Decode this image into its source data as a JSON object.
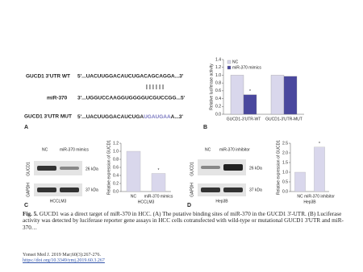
{
  "panel_a": {
    "label": "A",
    "rows": [
      {
        "name": "GUCD1 3'UTR WT",
        "seq": "5'...UACUUGGACAUCUGACAGCAGGA...3'"
      },
      {
        "name": "miR-370",
        "seq": "3'...UGGUCCAAGGUGGGGUCGUCCGG...5'"
      },
      {
        "name": "GUCD1 3'UTR MUT",
        "seq_prefix": "5'...UACUUGGACAUCUGA",
        "seq_mut": "UGAUGAA",
        "seq_suffix": "A...3'"
      }
    ],
    "pairing": "||||||"
  },
  "panel_labels": {
    "b": "B",
    "c": "C",
    "d": "D"
  },
  "blot_c": {
    "lanes": [
      "NC",
      "miR-370 mimics"
    ],
    "proteins": [
      "GUCD1",
      "GAPDH"
    ],
    "sizes": [
      "26 kDa",
      "37 kDa"
    ],
    "cell_line": "HCCLM3"
  },
  "blot_d": {
    "lanes": [
      "NC",
      "miR-370 inhibitor"
    ],
    "proteins": [
      "GUCD1",
      "GAPDH"
    ],
    "sizes": [
      "26 kDa",
      "37 kDa"
    ],
    "cell_line": "Hep3B"
  },
  "chart_data": [
    {
      "type": "bar",
      "ylabel": "Relative luciferase activity",
      "categories": [
        "GUCD1-3'UTR-WT",
        "GUCD1-3'UTR-MUT"
      ],
      "series": [
        {
          "name": "NC",
          "color": "#d9d7ec",
          "values": [
            1.0,
            1.0
          ]
        },
        {
          "name": "miR-370 mimics",
          "color": "#4a489e",
          "values": [
            0.5,
            0.97
          ]
        }
      ],
      "ylim": [
        0,
        1.4
      ],
      "yticks": [
        {
          "value": 0,
          "label": "0.0"
        },
        0.2,
        0.4,
        0.6,
        0.8,
        {
          "value": 1,
          "label": "1.0"
        },
        1.2,
        1.4
      ],
      "annotation": "*",
      "legend": "top-left"
    },
    {
      "type": "bar",
      "ylabel": "Relative expression of GUCD1",
      "xlabel": "HCCLM3",
      "categories": [
        "NC",
        "miR-370 mimics"
      ],
      "values": [
        1.0,
        0.45
      ],
      "color": "#d9d7ec",
      "ylim": [
        0,
        1.2
      ],
      "yticks": [
        {
          "value": 0,
          "label": "0.0"
        },
        0.2,
        0.4,
        0.6,
        0.8,
        {
          "value": 1,
          "label": "1.0"
        },
        1.2
      ],
      "annotation": "*"
    },
    {
      "type": "bar",
      "ylabel": "Relative expression of GUCD1",
      "xlabel": "Hep3B",
      "categories": [
        "NC",
        "miR-370 inhibitor"
      ],
      "values": [
        1.0,
        2.3
      ],
      "color": "#d9d7ec",
      "ylim": [
        0,
        2.5
      ],
      "yticks": [
        {
          "value": 0,
          "label": "0.0"
        },
        0.5,
        {
          "value": 1,
          "label": "1.0"
        },
        1.5,
        {
          "value": 2,
          "label": "2.0"
        },
        2.5
      ],
      "annotation": "*"
    }
  ],
  "caption": {
    "label": "Fig. 5.",
    "text": "GUCD1 was a direct target of miR-370 in HCC. (A) The putative binding sites of miR-370 in the GUCD1 3'-UTR. (B) Luciferase activity was detected by luciferase reporter gene assays in HCC cells cotransfected with wild-type or mutational GUCD1 3'UTR and miR-370…"
  },
  "footer": {
    "citation": "Yonsei Med J. 2019 Mar;60(3):267-276.",
    "doi": "https://doi.org/10.3349/ymj.2019.60.3.267"
  }
}
